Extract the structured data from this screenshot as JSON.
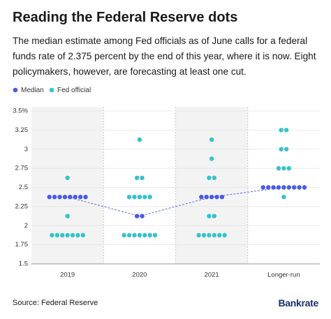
{
  "chart_data": {
    "type": "dot",
    "title": "Reading the Federal Reserve dots",
    "subtitle": "The median estimate among Fed officials as of June calls for a federal funds rate of 2.375 percent by the end of this year, where it is now. Eight policymakers, however, are forecasting at least one cut.",
    "categories": [
      "2019",
      "2020",
      "2021",
      "Longer-run"
    ],
    "series": [
      {
        "name": "Median",
        "color": "#4a5be6",
        "values": [
          2.375,
          2.125,
          2.375,
          2.5
        ]
      },
      {
        "name": "Fed official",
        "color": "#35c3cc",
        "values": [
          [
            2.625,
            2.375,
            2.375,
            2.375,
            2.375,
            2.375,
            2.375,
            2.375,
            2.375,
            2.125,
            1.875,
            1.875,
            1.875,
            1.875,
            1.875,
            1.875,
            1.875
          ],
          [
            3.125,
            2.625,
            2.625,
            2.375,
            2.375,
            2.375,
            2.375,
            2.375,
            2.125,
            2.125,
            1.875,
            1.875,
            1.875,
            1.875,
            1.875,
            1.875,
            1.875
          ],
          [
            3.125,
            2.875,
            2.625,
            2.625,
            2.375,
            2.375,
            2.375,
            2.375,
            2.375,
            2.125,
            2.125,
            1.875,
            1.875,
            1.875,
            1.875,
            1.875,
            1.875
          ],
          [
            3.25,
            3.25,
            3,
            3,
            2.75,
            2.75,
            2.75,
            2.5,
            2.5,
            2.5,
            2.5,
            2.5,
            2.5,
            2.5,
            2.5,
            2.5,
            2.375
          ]
        ]
      }
    ],
    "ylim": [
      1.5,
      3.5
    ],
    "yticks": [
      1.5,
      1.75,
      2,
      2.25,
      2.5,
      2.75,
      3,
      3.25,
      {
        "value": 3.5,
        "label": "3.5%"
      }
    ],
    "grid": true
  },
  "source": "Source: Federal Reserve",
  "brand": "Bankrate"
}
